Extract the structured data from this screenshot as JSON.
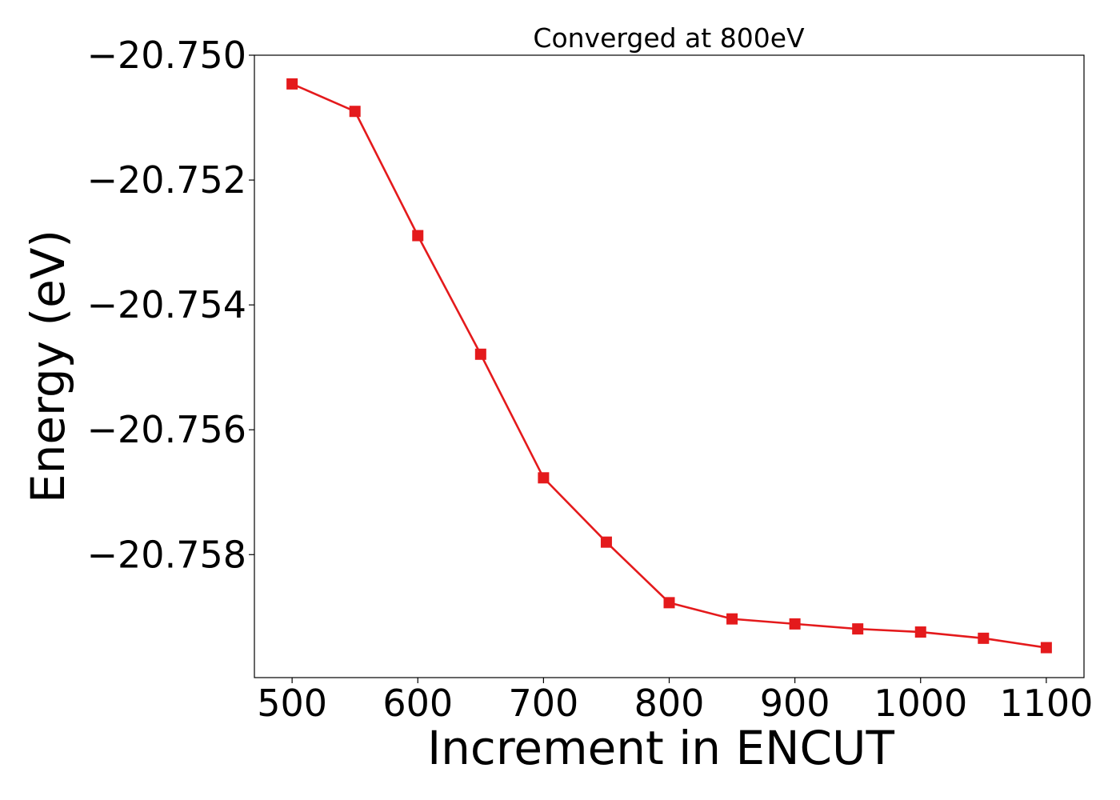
{
  "chart_data": {
    "type": "line",
    "title": "Converged at 800eV",
    "xlabel": "Increment in ENCUT",
    "ylabel": "Energy (eV)",
    "x": [
      500,
      550,
      600,
      650,
      700,
      750,
      800,
      850,
      900,
      950,
      1000,
      1050,
      1100
    ],
    "series": [
      {
        "values": [
          -20.75046,
          -20.7509,
          -20.75289,
          -20.75479,
          -20.75677,
          -20.7578,
          -20.75877,
          -20.75903,
          -20.75911,
          -20.75919,
          -20.75924,
          -20.75934,
          -20.75949
        ],
        "color": "#e41a1c",
        "marker": "square"
      }
    ],
    "xticks": [
      500,
      600,
      700,
      800,
      900,
      1000,
      1100
    ],
    "xtick_labels": [
      "500",
      "600",
      "700",
      "800",
      "900",
      "1000",
      "1100"
    ],
    "yticks": [
      -20.75,
      -20.752,
      -20.754,
      -20.756,
      -20.758
    ],
    "ytick_labels": [
      "−20.750",
      "−20.752",
      "−20.754",
      "−20.756",
      "−20.758"
    ],
    "xlim": [
      470,
      1130
    ],
    "ylim": [
      -20.75997,
      -20.75
    ],
    "grid": false,
    "legend": false
  }
}
